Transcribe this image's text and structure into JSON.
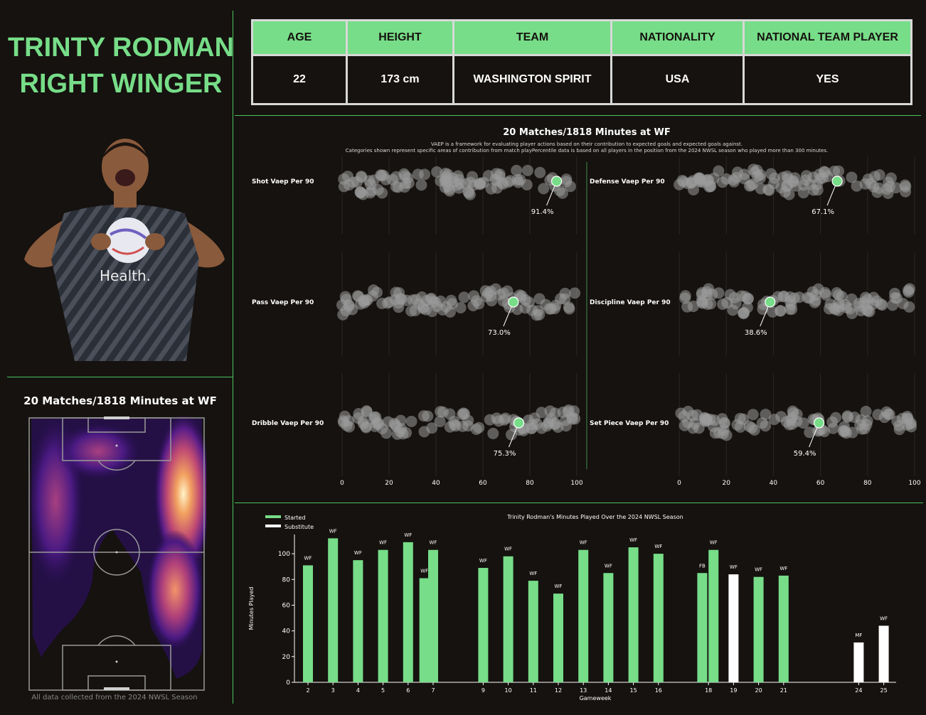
{
  "header": {
    "name": "TRINTY RODMAN",
    "position": "RIGHT WINGER"
  },
  "info_table": {
    "headers": [
      "AGE",
      "HEIGHT",
      "TEAM",
      "NATIONALITY",
      "NATIONAL TEAM PLAYER"
    ],
    "values": [
      "22",
      "173 cm",
      "WASHINGTON SPIRIT",
      "USA",
      "YES"
    ]
  },
  "heatmap": {
    "title": "20 Matches/1818 Minutes at WF",
    "footnote": "All data collected from the 2024 NWSL Season"
  },
  "colors": {
    "accent": "#77dd88",
    "background": "#15120f",
    "substitute": "#ffffff",
    "dots": "#9a9a9a"
  },
  "chart_data": [
    {
      "type": "scatter",
      "title": "20 Matches/1818 Minutes at WF",
      "subtitle": [
        "VAEP is a framework for evaluating player actions based on their contribution to expected goals and expected goals against.",
        "Categories shown represent specific areas of contribution from match playPercentile data is based on all players in the position from the 2024 NWSL season who played more than 300 minutes."
      ],
      "xlim": [
        0,
        100
      ],
      "x_ticks": [
        0,
        20,
        40,
        60,
        80,
        100
      ],
      "panels": [
        {
          "label": "Shot Vaep Per 90",
          "value": 91.4,
          "value_label": "91.4%"
        },
        {
          "label": "Defense Vaep Per 90",
          "value": 67.1,
          "value_label": "67.1%"
        },
        {
          "label": "Pass Vaep Per 90",
          "value": 73.0,
          "value_label": "73.0%"
        },
        {
          "label": "Discipline Vaep Per 90",
          "value": 38.6,
          "value_label": "38.6%"
        },
        {
          "label": "Dribble Vaep Per 90",
          "value": 75.3,
          "value_label": "75.3%"
        },
        {
          "label": "Set Piece Vaep Per 90",
          "value": 59.4,
          "value_label": "59.4%"
        }
      ]
    },
    {
      "type": "bar",
      "title": "Trinity Rodman's Minutes Played Over the 2024 NWSL Season",
      "xlabel": "Gameweek",
      "ylabel": "Minutes Played",
      "ylim": [
        0,
        115
      ],
      "y_ticks": [
        0,
        20,
        40,
        60,
        80,
        100
      ],
      "x_ticks": [
        2,
        3,
        4,
        5,
        6,
        7,
        9,
        10,
        11,
        12,
        13,
        14,
        15,
        16,
        18,
        19,
        20,
        21,
        24,
        25
      ],
      "legend": [
        {
          "name": "Started",
          "color": "#77dd88"
        },
        {
          "name": "Substitute",
          "color": "#ffffff"
        }
      ],
      "bars": [
        {
          "x": 2,
          "value": 91,
          "pos": "WF",
          "started": true
        },
        {
          "x": 3,
          "value": 112,
          "pos": "WF",
          "started": true
        },
        {
          "x": 4,
          "value": 95,
          "pos": "WF",
          "started": true
        },
        {
          "x": 5,
          "value": 103,
          "pos": "WF",
          "started": true
        },
        {
          "x": 6,
          "value": 109,
          "pos": "WF",
          "started": true
        },
        {
          "x": 6.65,
          "value": 81,
          "pos": "WF",
          "started": true
        },
        {
          "x": 7,
          "value": 103,
          "pos": "WF",
          "started": true
        },
        {
          "x": 9,
          "value": 89,
          "pos": "WF",
          "started": true
        },
        {
          "x": 10,
          "value": 98,
          "pos": "WF",
          "started": true
        },
        {
          "x": 11,
          "value": 79,
          "pos": "WF",
          "started": true
        },
        {
          "x": 12,
          "value": 69,
          "pos": "WF",
          "started": true
        },
        {
          "x": 13,
          "value": 103,
          "pos": "WF",
          "started": true
        },
        {
          "x": 14,
          "value": 85,
          "pos": "WF",
          "started": true
        },
        {
          "x": 15,
          "value": 105,
          "pos": "WF",
          "started": true
        },
        {
          "x": 16,
          "value": 100,
          "pos": "WF",
          "started": true
        },
        {
          "x": 17.75,
          "value": 85,
          "pos": "FB",
          "started": true
        },
        {
          "x": 18.2,
          "value": 103,
          "pos": "WF",
          "started": true
        },
        {
          "x": 19,
          "value": 84,
          "pos": "WF",
          "started": false
        },
        {
          "x": 20,
          "value": 82,
          "pos": "WF",
          "started": true
        },
        {
          "x": 21,
          "value": 83,
          "pos": "WF",
          "started": true
        },
        {
          "x": 24,
          "value": 31,
          "pos": "MF",
          "started": false
        },
        {
          "x": 25,
          "value": 44,
          "pos": "WF",
          "started": false
        }
      ]
    }
  ]
}
